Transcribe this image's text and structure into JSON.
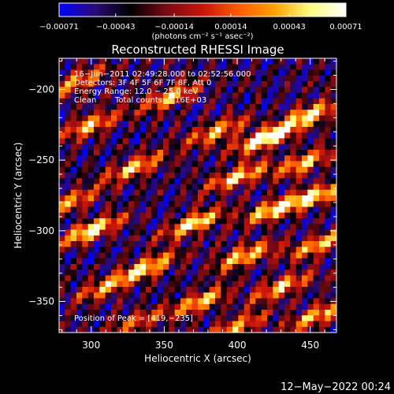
{
  "chart_data": {
    "type": "heatmap",
    "title": "Reconstructed RHESSI Image",
    "xlabel": "Heliocentric X (arcsec)",
    "ylabel": "Heliocentric Y (arcsec)",
    "xlim": [
      278,
      468
    ],
    "ylim": [
      -372,
      -178
    ],
    "x_ticks": [
      300,
      350,
      400,
      450
    ],
    "y_ticks": [
      -350,
      -300,
      -250,
      -200
    ],
    "x_tick_labels": [
      "300",
      "350",
      "400",
      "450"
    ],
    "y_tick_labels": [
      "−350",
      "−300",
      "−250",
      "−200"
    ],
    "colorbar": {
      "min": -0.00071,
      "max": 0.00071,
      "tick_values": [
        -0.00071,
        -0.00043,
        -0.00014,
        0.00014,
        0.00043,
        0.00071
      ],
      "tick_labels": [
        "−0.00071",
        "−0.00043",
        "−0.00014",
        "0.00014",
        "0.00043",
        "0.00071"
      ],
      "units": "(photons cm⁻² s⁻¹ asec⁻²)",
      "colormap": [
        "#0000ff",
        "#2a0a78",
        "#000000",
        "#7a0a14",
        "#c8140a",
        "#ff5a00",
        "#ffa000",
        "#ffff80",
        "#ffffff"
      ]
    },
    "annotations": {
      "time_range": "16−Jun−2011 02:49:28.000 to 02:52:56.000",
      "detectors": "Detectors: 3F 4F 5F 6F 7F 8F, Att 0",
      "energy_range": "Energy Range: 12.0 − 25.0 keV",
      "method": "Clean",
      "total_counts": "Total counts: 5.16E+03",
      "peak_position": "Position of Peak = [419,−235]"
    },
    "peak": [
      419,
      -235
    ],
    "bright_streaks": [
      {
        "x": 419,
        "y": -235,
        "intensity": 1.0
      },
      {
        "x": 450,
        "y": -218,
        "intensity": 0.8
      },
      {
        "x": 300,
        "y": -225,
        "intensity": 0.7
      },
      {
        "x": 355,
        "y": -205,
        "intensity": 0.7
      },
      {
        "x": 385,
        "y": -230,
        "intensity": 0.65
      },
      {
        "x": 330,
        "y": -255,
        "intensity": 0.7
      },
      {
        "x": 400,
        "y": -262,
        "intensity": 0.75
      },
      {
        "x": 445,
        "y": -252,
        "intensity": 0.7
      },
      {
        "x": 300,
        "y": -300,
        "intensity": 0.9
      },
      {
        "x": 370,
        "y": -295,
        "intensity": 0.85
      },
      {
        "x": 425,
        "y": -285,
        "intensity": 0.8
      },
      {
        "x": 455,
        "y": -275,
        "intensity": 0.75
      },
      {
        "x": 340,
        "y": -325,
        "intensity": 0.75
      },
      {
        "x": 405,
        "y": -318,
        "intensity": 0.75
      },
      {
        "x": 455,
        "y": -310,
        "intensity": 0.7
      },
      {
        "x": 310,
        "y": -340,
        "intensity": 0.6
      },
      {
        "x": 375,
        "y": -350,
        "intensity": 0.7
      },
      {
        "x": 430,
        "y": -340,
        "intensity": 0.7
      },
      {
        "x": 330,
        "y": -365,
        "intensity": 0.5
      },
      {
        "x": 400,
        "y": -368,
        "intensity": 0.6
      },
      {
        "x": 455,
        "y": -360,
        "intensity": 0.7
      },
      {
        "x": 290,
        "y": -195,
        "intensity": 0.6
      },
      {
        "x": 285,
        "y": -280,
        "intensity": 0.6
      }
    ],
    "grid": false
  },
  "footer": {
    "timestamp": "12−May−2022 00:24"
  }
}
